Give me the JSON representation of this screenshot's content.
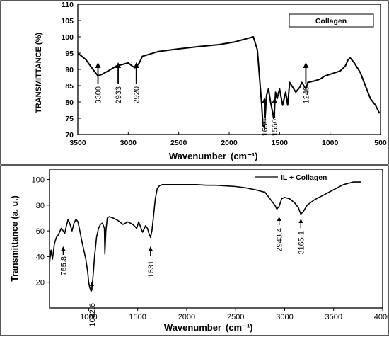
{
  "chart_data": [
    {
      "type": "line",
      "title": "",
      "legend": "Collagen",
      "legend_position": "top-right",
      "xlabel": "Wavenumber",
      "xlabel_unit": "(cm⁻¹)",
      "ylabel": "TRANSMITTANCE (%)",
      "xlim": [
        3500,
        500
      ],
      "ylim": [
        70,
        110
      ],
      "xticks": [
        "3500",
        "3000",
        "2500",
        "2000",
        "1500",
        "1000",
        "500"
      ],
      "yticks": [
        "70",
        "75",
        "80",
        "85",
        "90",
        "95",
        "100",
        "105",
        "110"
      ],
      "grid": false,
      "series": [
        {
          "name": "Collagen",
          "color": "#000000",
          "x": [
            3500,
            3420,
            3350,
            3300,
            3260,
            3200,
            3120,
            3060,
            3000,
            2960,
            2933,
            2920,
            2890,
            2860,
            2700,
            2500,
            2300,
            2100,
            1950,
            1820,
            1760,
            1720,
            1700,
            1680,
            1665,
            1650,
            1640,
            1630,
            1610,
            1590,
            1570,
            1560,
            1550,
            1540,
            1525,
            1500,
            1470,
            1440,
            1420,
            1400,
            1380,
            1340,
            1300,
            1280,
            1260,
            1240,
            1220,
            1150,
            1100,
            1050,
            1000,
            950,
            900,
            850,
            820,
            800,
            760,
            700,
            650,
            600,
            550,
            510
          ],
          "y": [
            95,
            93,
            90,
            88,
            88.5,
            89.5,
            91,
            91.5,
            92,
            91,
            90.5,
            90.8,
            92,
            94,
            95.5,
            96.3,
            97,
            97.6,
            98.4,
            99.5,
            100,
            96,
            88,
            80,
            73,
            72,
            77,
            82,
            84,
            80,
            77,
            75,
            78,
            83,
            81,
            84,
            79,
            83,
            79,
            86,
            85,
            83,
            84.5,
            86,
            85,
            84,
            86,
            86.5,
            87,
            88,
            88.5,
            89,
            89.5,
            91,
            93,
            93.5,
            92,
            89,
            85,
            81,
            79,
            76.5
          ]
        }
      ],
      "annotations": [
        {
          "label": "3300",
          "x": 3300
        },
        {
          "label": "2933",
          "x": 3100
        },
        {
          "label": "2920",
          "x": 2920
        },
        {
          "label": "1650",
          "x": 1650
        },
        {
          "label": "1550",
          "x": 1550
        },
        {
          "label": "1240",
          "x": 1240
        }
      ]
    },
    {
      "type": "line",
      "title": "",
      "legend": "IL + Collagen",
      "legend_position": "top-right",
      "xlabel": "Wavenumber",
      "xlabel_unit": "(cm⁻¹)",
      "ylabel": "Transmittance (a. u.)",
      "xlim": [
        600,
        4000
      ],
      "ylim": [
        0,
        108
      ],
      "xticks": [
        "1000",
        "1500",
        "2000",
        "2500",
        "3000",
        "3500",
        "4000"
      ],
      "yticks": [
        "20",
        "40",
        "60",
        "80",
        "100"
      ],
      "grid": false,
      "series": [
        {
          "name": "IL + Collagen",
          "color": "#000000",
          "x": [
            600,
            615,
            630,
            650,
            670,
            690,
            720,
            740,
            755,
            770,
            790,
            810,
            830,
            850,
            870,
            890,
            910,
            930,
            950,
            970,
            990,
            1000,
            1010,
            1025,
            1032,
            1045,
            1060,
            1080,
            1100,
            1120,
            1140,
            1160,
            1165,
            1175,
            1190,
            1210,
            1250,
            1300,
            1350,
            1400,
            1450,
            1490,
            1510,
            1530,
            1550,
            1580,
            1600,
            1615,
            1631,
            1645,
            1660,
            1680,
            1700,
            1720,
            1750,
            1800,
            1900,
            2000,
            2100,
            2200,
            2300,
            2400,
            2500,
            2600,
            2700,
            2800,
            2850,
            2900,
            2920,
            2943,
            2970,
            3000,
            3050,
            3100,
            3140,
            3165,
            3190,
            3230,
            3300,
            3400,
            3500,
            3600,
            3700,
            3780
          ],
          "y": [
            35,
            45,
            38,
            50,
            55,
            57,
            62,
            60,
            58,
            63,
            69,
            65,
            60,
            66,
            69,
            67,
            60,
            52,
            45,
            38,
            28,
            20,
            16,
            13,
            14,
            25,
            40,
            55,
            62,
            65,
            66,
            62,
            42,
            60,
            70,
            71,
            70,
            68,
            65,
            67,
            65,
            62,
            67,
            63,
            59,
            64,
            62,
            58,
            55,
            60,
            70,
            85,
            93,
            95,
            96,
            96,
            96,
            96,
            96,
            95.5,
            95.5,
            95,
            94.5,
            93.5,
            92,
            90,
            85,
            80,
            77,
            79,
            85,
            86,
            85,
            82,
            78,
            73,
            75,
            80,
            84,
            88,
            92,
            96,
            98,
            98
          ]
        }
      ],
      "annotations": [
        {
          "label": "755.8",
          "x": 740
        },
        {
          "label": "1032.6",
          "x": 1032.6
        },
        {
          "label": "1631",
          "x": 1631
        },
        {
          "label": "2943.4",
          "x": 2943.4
        },
        {
          "label": "3165.1",
          "x": 3165.1
        }
      ]
    }
  ]
}
